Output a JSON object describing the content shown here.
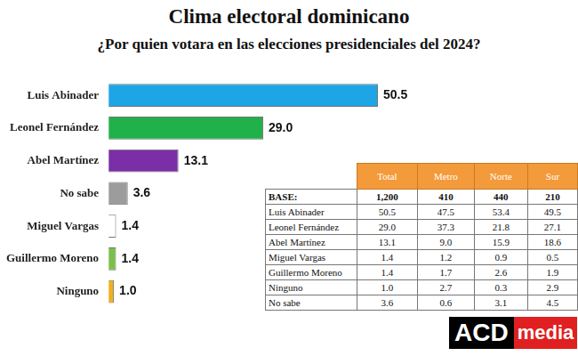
{
  "chart_data": {
    "type": "bar",
    "orientation": "horizontal",
    "title": "Clima electoral dominicano",
    "subtitle": "¿Por quien votara en las elecciones presidenciales del 2024?",
    "categories": [
      "Luis Abinader",
      "Leonel Fernández",
      "Abel Martínez",
      "No sabe",
      "Miguel Vargas",
      "Guillermo Moreno",
      "Ninguno"
    ],
    "values": [
      50.5,
      29.0,
      13.1,
      3.6,
      1.4,
      1.4,
      1.0
    ],
    "value_labels": [
      "50.5",
      "29.0",
      "13.1",
      "3.6",
      "1.4",
      "1.4",
      "1.0"
    ],
    "colors": [
      "#1ea5e6",
      "#21b14b",
      "#7a2fa6",
      "#9c9c9c",
      "#ffffff",
      "#7cc04a",
      "#f2b01e"
    ],
    "xlim": [
      0,
      58
    ],
    "grid": false,
    "tick_labels": "y",
    "data_labels": true
  },
  "table": {
    "columns": [
      "Total",
      "Metro",
      "Norte",
      "Sur"
    ],
    "rows": [
      [
        "BASE:",
        "1,200",
        "410",
        "440",
        "210"
      ],
      [
        "Luis Abinader",
        "50.5",
        "47.5",
        "53.4",
        "49.5"
      ],
      [
        "Leonel Fernández",
        "29.0",
        "37.3",
        "21.8",
        "27.1"
      ],
      [
        "Abel Martínez",
        "13.1",
        "9.0",
        "15.9",
        "18.6"
      ],
      [
        "Miguel Vargas",
        "1.4",
        "1.2",
        "0.9",
        "0.5"
      ],
      [
        "Guillermo Moreno",
        "1.4",
        "1.7",
        "2.6",
        "1.9"
      ],
      [
        "Ninguno",
        "1.0",
        "2.7",
        "0.3",
        "2.9"
      ],
      [
        "No sabe",
        "3.6",
        "0.6",
        "3.1",
        "4.5"
      ]
    ]
  },
  "logo": [
    "ACD",
    "media"
  ]
}
